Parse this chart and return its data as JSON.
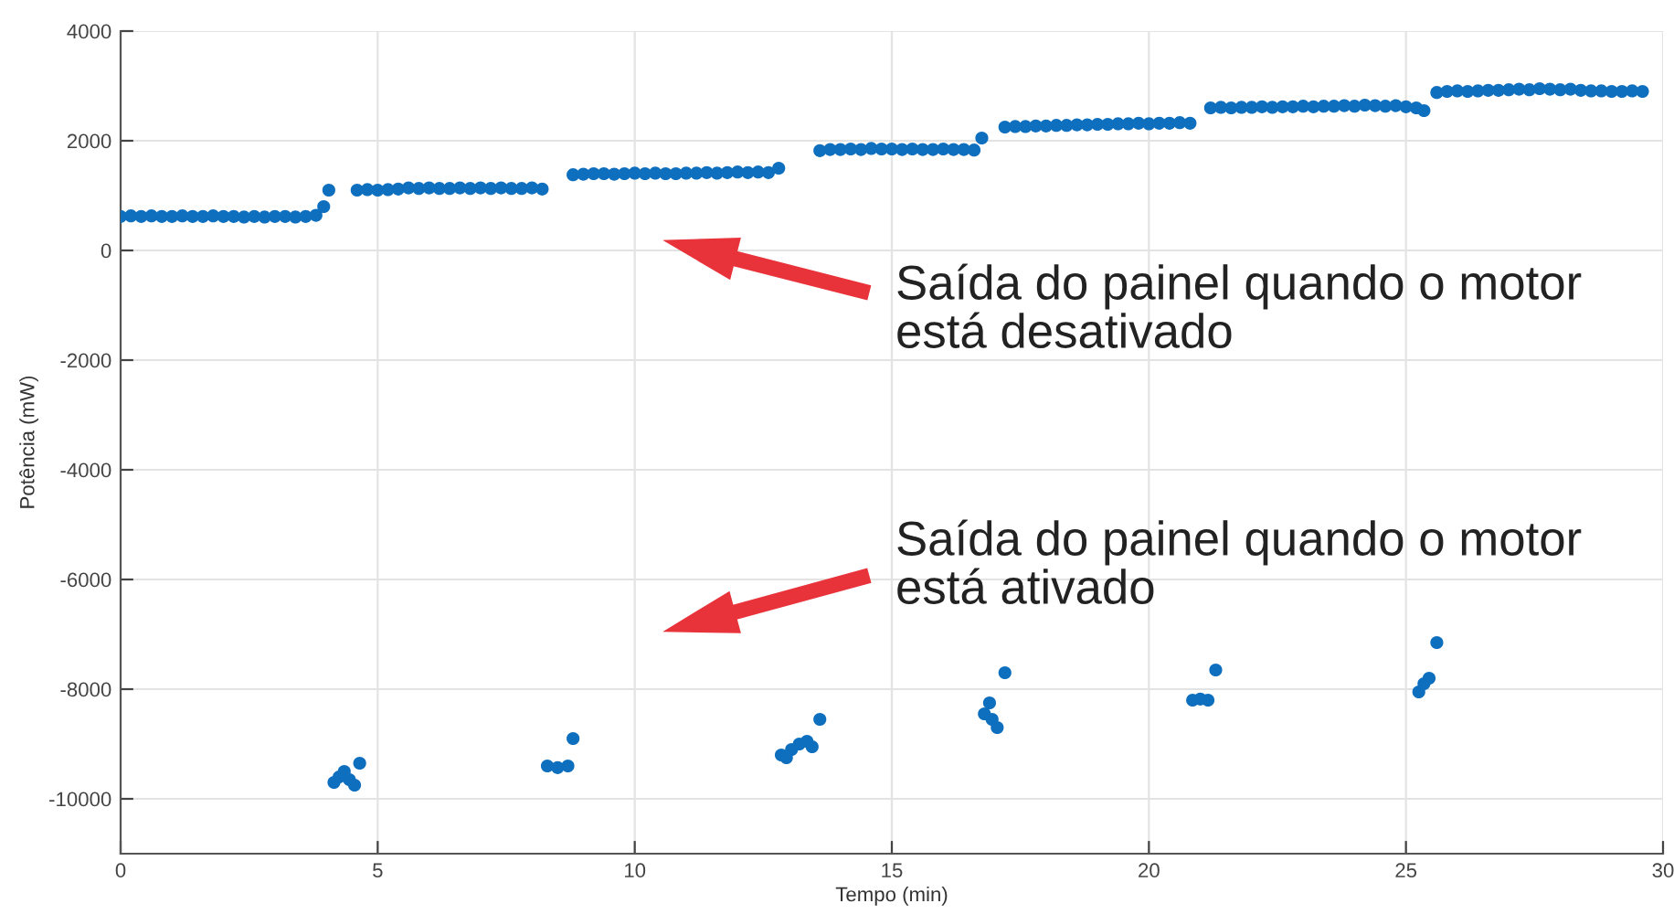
{
  "chart_data": {
    "type": "scatter",
    "xlabel": "Tempo (min)",
    "ylabel": "Potência (mW)",
    "annotations": [
      "Saída do painel quando o motor\nestá desativado",
      "Saída do painel quando o motor\nestá ativado"
    ],
    "xlim": [
      0,
      30
    ],
    "xticks": [
      0,
      5,
      10,
      15,
      20,
      25,
      30
    ],
    "ylim": [
      -11000,
      4000
    ],
    "yticks": [
      -10000,
      -8000,
      -6000,
      -4000,
      -2000,
      0,
      2000,
      4000
    ],
    "grid": true,
    "marker": "circle",
    "series": [
      {
        "color": "#0e6fbf",
        "x": [
          0,
          0.2,
          0.4,
          0.6,
          0.8,
          1.0,
          1.2,
          1.4,
          1.6,
          1.8,
          2.0,
          2.2,
          2.4,
          2.6,
          2.8,
          3.0,
          3.2,
          3.4,
          3.6,
          3.8,
          3.95,
          4.05,
          4.6,
          4.8,
          5.0,
          5.2,
          5.4,
          5.6,
          5.8,
          6.0,
          6.2,
          6.4,
          6.6,
          6.8,
          7.0,
          7.2,
          7.4,
          7.6,
          7.8,
          8.0,
          8.2,
          8.8,
          9.0,
          9.2,
          9.4,
          9.6,
          9.8,
          10.0,
          10.2,
          10.4,
          10.6,
          10.8,
          11.0,
          11.2,
          11.4,
          11.6,
          11.8,
          12.0,
          12.2,
          12.4,
          12.6,
          12.8,
          13.6,
          13.8,
          14.0,
          14.2,
          14.4,
          14.6,
          14.8,
          15.0,
          15.2,
          15.4,
          15.6,
          15.8,
          16.0,
          16.2,
          16.4,
          16.6,
          16.75,
          17.2,
          17.4,
          17.6,
          17.8,
          18.0,
          18.2,
          18.4,
          18.6,
          18.8,
          19.0,
          19.2,
          19.4,
          19.6,
          19.8,
          20.0,
          20.2,
          20.4,
          20.6,
          20.8,
          21.2,
          21.4,
          21.6,
          21.8,
          22.0,
          22.2,
          22.4,
          22.6,
          22.8,
          23.0,
          23.2,
          23.4,
          23.6,
          23.8,
          24.0,
          24.2,
          24.4,
          24.6,
          24.8,
          25.0,
          25.2,
          25.35,
          25.6,
          25.8,
          26.0,
          26.2,
          26.4,
          26.6,
          26.8,
          27.0,
          27.2,
          27.4,
          27.6,
          27.8,
          28.0,
          28.2,
          28.4,
          28.6,
          28.8,
          29.0,
          29.2,
          29.4,
          29.6,
          4.15,
          4.25,
          4.35,
          4.45,
          4.55,
          4.65,
          8.3,
          8.5,
          8.7,
          8.8,
          12.85,
          12.95,
          13.05,
          13.2,
          13.35,
          13.45,
          13.6,
          16.8,
          16.9,
          16.95,
          17.05,
          17.2,
          20.85,
          21.0,
          21.15,
          21.3,
          25.25,
          25.35,
          25.45,
          25.6
        ],
        "values": [
          620,
          630,
          620,
          630,
          620,
          620,
          630,
          620,
          620,
          630,
          620,
          620,
          610,
          620,
          610,
          620,
          620,
          610,
          620,
          640,
          800,
          1100,
          1100,
          1110,
          1100,
          1110,
          1120,
          1140,
          1130,
          1140,
          1130,
          1130,
          1140,
          1130,
          1140,
          1130,
          1140,
          1130,
          1130,
          1140,
          1120,
          1380,
          1390,
          1400,
          1400,
          1390,
          1400,
          1410,
          1400,
          1410,
          1400,
          1400,
          1410,
          1410,
          1420,
          1410,
          1420,
          1430,
          1420,
          1430,
          1420,
          1500,
          1820,
          1840,
          1840,
          1850,
          1840,
          1860,
          1850,
          1850,
          1840,
          1850,
          1840,
          1840,
          1850,
          1840,
          1840,
          1830,
          2050,
          2250,
          2260,
          2260,
          2270,
          2270,
          2280,
          2280,
          2290,
          2290,
          2300,
          2300,
          2310,
          2310,
          2320,
          2310,
          2320,
          2320,
          2330,
          2320,
          2600,
          2610,
          2600,
          2610,
          2610,
          2620,
          2610,
          2620,
          2620,
          2630,
          2620,
          2630,
          2630,
          2640,
          2630,
          2650,
          2640,
          2630,
          2640,
          2620,
          2600,
          2550,
          2880,
          2900,
          2910,
          2900,
          2910,
          2920,
          2920,
          2930,
          2940,
          2930,
          2950,
          2940,
          2930,
          2940,
          2920,
          2910,
          2910,
          2900,
          2900,
          2910,
          2900,
          -9700,
          -9600,
          -9500,
          -9650,
          -9750,
          -9350,
          -9400,
          -9430,
          -9400,
          -8900,
          -9200,
          -9250,
          -9100,
          -9000,
          -8950,
          -9050,
          -8550,
          -8450,
          -8250,
          -8550,
          -8700,
          -7700,
          -8200,
          -8180,
          -8200,
          -7650,
          -8050,
          -7900,
          -7800,
          -7150
        ]
      }
    ]
  }
}
